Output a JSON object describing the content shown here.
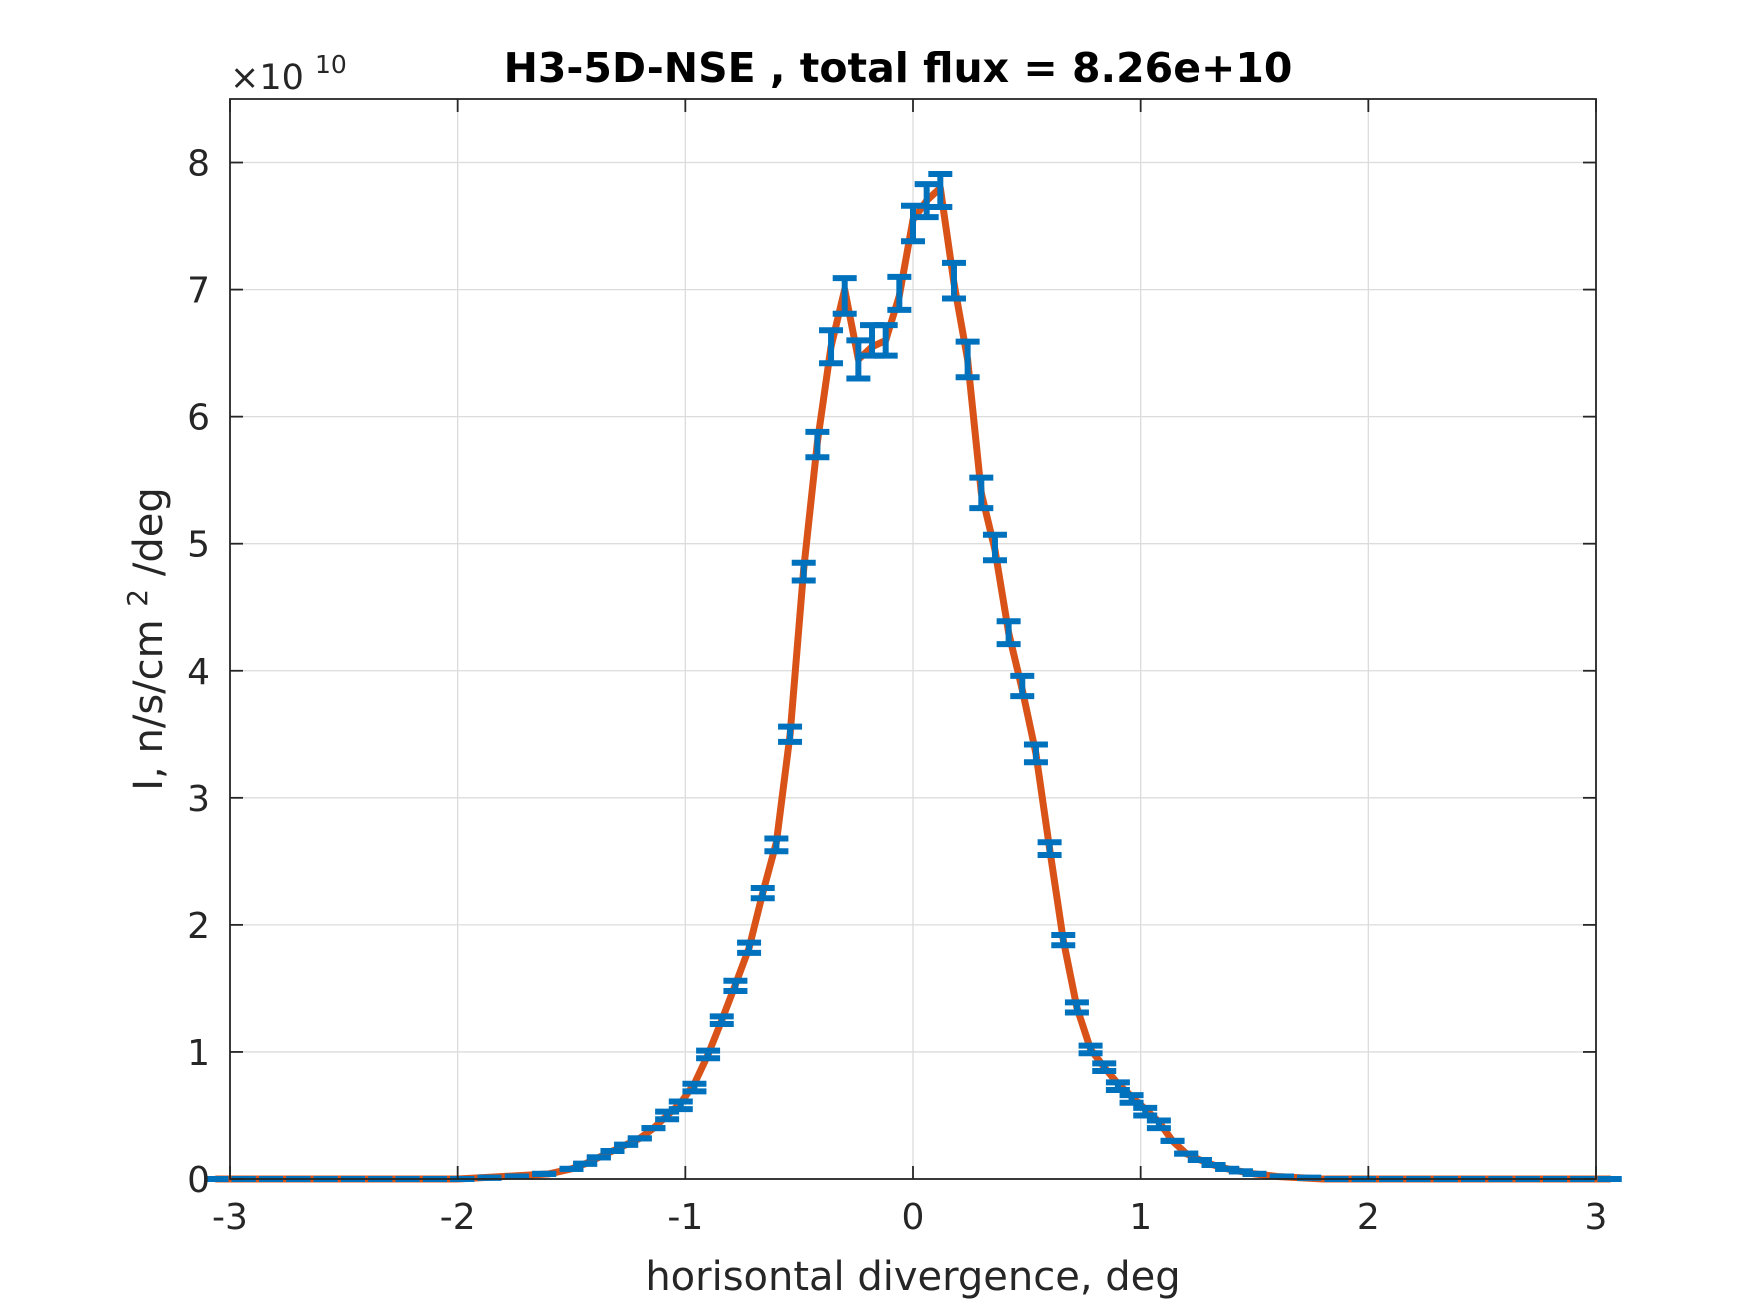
{
  "chart_data": {
    "type": "line",
    "title": "H3-5D-NSE , total flux =  8.26e+10",
    "xlabel": "horisontal divergence, deg",
    "ylabel": "I, n/s/cm",
    "ylabel_sup": "2",
    "ylabel_tail": "/deg",
    "y_exponent_base": "×10",
    "y_exponent_power": "10",
    "xlim": [
      -3,
      3
    ],
    "ylim": [
      0,
      8.5
    ],
    "xticks": [
      -3,
      -2,
      -1,
      0,
      1,
      2,
      3
    ],
    "xtick_labels": [
      "-3",
      "-2",
      "-1",
      "0",
      "1",
      "2",
      "3"
    ],
    "yticks": [
      0,
      1,
      2,
      3,
      4,
      5,
      6,
      7,
      8
    ],
    "ytick_labels": [
      "0",
      "1",
      "2",
      "3",
      "4",
      "5",
      "6",
      "7",
      "8"
    ],
    "grid": true,
    "colors": {
      "line": "#D95319",
      "errorbar": "#0072BD",
      "grid": "#dcdcdc",
      "axes": "#262626"
    },
    "series": [
      {
        "style": "line",
        "x": [
          -3.06,
          -2.0,
          -1.9,
          -1.8,
          -1.7,
          -1.6,
          -1.5,
          -1.44,
          -1.38,
          -1.32,
          -1.26,
          -1.2,
          -1.14,
          -1.08,
          -1.02,
          -0.96,
          -0.9,
          -0.84,
          -0.78,
          -0.72,
          -0.66,
          -0.6,
          -0.54,
          -0.48,
          -0.42,
          -0.36,
          -0.3,
          -0.24,
          -0.18,
          -0.12,
          -0.06,
          0.0,
          0.06,
          0.12,
          0.18,
          0.24,
          0.3,
          0.36,
          0.42,
          0.48,
          0.54,
          0.6,
          0.66,
          0.72,
          0.78,
          0.84,
          0.9,
          0.96,
          1.02,
          1.08,
          1.14,
          1.2,
          1.26,
          1.32,
          1.38,
          1.44,
          1.5,
          1.6,
          1.7,
          1.8,
          1.9,
          2.0,
          3.06
        ],
        "y": [
          0,
          0,
          0.01,
          0.02,
          0.03,
          0.04,
          0.08,
          0.12,
          0.17,
          0.22,
          0.27,
          0.32,
          0.4,
          0.5,
          0.6,
          0.75,
          0.98,
          1.25,
          1.53,
          1.82,
          2.25,
          2.65,
          3.5,
          4.8,
          5.8,
          6.55,
          7.0,
          6.45,
          6.55,
          6.6,
          6.95,
          7.55,
          7.7,
          7.8,
          7.05,
          6.45,
          5.4,
          4.95,
          4.3,
          3.85,
          3.35,
          2.6,
          1.88,
          1.35,
          1.02,
          0.88,
          0.75,
          0.65,
          0.55,
          0.45,
          0.3,
          0.2,
          0.15,
          0.11,
          0.08,
          0.06,
          0.04,
          0.02,
          0.01,
          0,
          0,
          0,
          0
        ]
      },
      {
        "style": "errorbar",
        "x": [
          -3.06,
          -2.94,
          -2.82,
          -2.7,
          -2.58,
          -2.46,
          -2.34,
          -2.22,
          -2.1,
          -1.98,
          -1.86,
          -1.74,
          -1.62,
          -1.5,
          -1.44,
          -1.38,
          -1.32,
          -1.26,
          -1.2,
          -1.14,
          -1.08,
          -1.02,
          -0.96,
          -0.9,
          -0.84,
          -0.78,
          -0.72,
          -0.66,
          -0.6,
          -0.54,
          -0.48,
          -0.42,
          -0.36,
          -0.3,
          -0.24,
          -0.18,
          -0.12,
          -0.06,
          0.0,
          0.06,
          0.12,
          0.18,
          0.24,
          0.3,
          0.36,
          0.42,
          0.48,
          0.54,
          0.6,
          0.66,
          0.72,
          0.78,
          0.84,
          0.9,
          0.96,
          1.02,
          1.08,
          1.14,
          1.2,
          1.26,
          1.32,
          1.38,
          1.44,
          1.5,
          1.62,
          1.74,
          1.86,
          1.98,
          2.1,
          2.22,
          2.34,
          2.46,
          2.58,
          2.7,
          2.82,
          2.94,
          3.06
        ],
        "y": [
          0,
          0,
          0,
          0,
          0,
          0,
          0,
          0,
          0,
          0,
          0.01,
          0.02,
          0.04,
          0.08,
          0.12,
          0.17,
          0.22,
          0.27,
          0.32,
          0.4,
          0.5,
          0.58,
          0.72,
          0.98,
          1.25,
          1.52,
          1.82,
          2.25,
          2.63,
          3.5,
          4.78,
          5.78,
          6.55,
          6.95,
          6.45,
          6.6,
          6.6,
          6.97,
          7.52,
          7.7,
          7.78,
          7.07,
          6.45,
          5.4,
          4.97,
          4.3,
          3.88,
          3.35,
          2.6,
          1.88,
          1.35,
          1.02,
          0.88,
          0.73,
          0.63,
          0.53,
          0.43,
          0.3,
          0.2,
          0.15,
          0.11,
          0.08,
          0.06,
          0.04,
          0.02,
          0.01,
          0,
          0,
          0,
          0,
          0,
          0,
          0,
          0,
          0,
          0,
          0
        ],
        "err": [
          0,
          0,
          0,
          0,
          0,
          0,
          0,
          0,
          0,
          0,
          0,
          0,
          0,
          0,
          0,
          0,
          0,
          0,
          0,
          0,
          0.03,
          0.03,
          0.03,
          0.03,
          0.03,
          0.04,
          0.04,
          0.04,
          0.05,
          0.06,
          0.07,
          0.1,
          0.13,
          0.14,
          0.15,
          0.12,
          0.12,
          0.13,
          0.14,
          0.13,
          0.13,
          0.14,
          0.14,
          0.12,
          0.1,
          0.09,
          0.08,
          0.07,
          0.05,
          0.04,
          0.04,
          0.03,
          0.03,
          0.03,
          0.03,
          0.03,
          0.03,
          0,
          0,
          0,
          0,
          0,
          0,
          0,
          0,
          0,
          0,
          0,
          0,
          0,
          0,
          0,
          0,
          0,
          0,
          0,
          0
        ]
      }
    ]
  }
}
